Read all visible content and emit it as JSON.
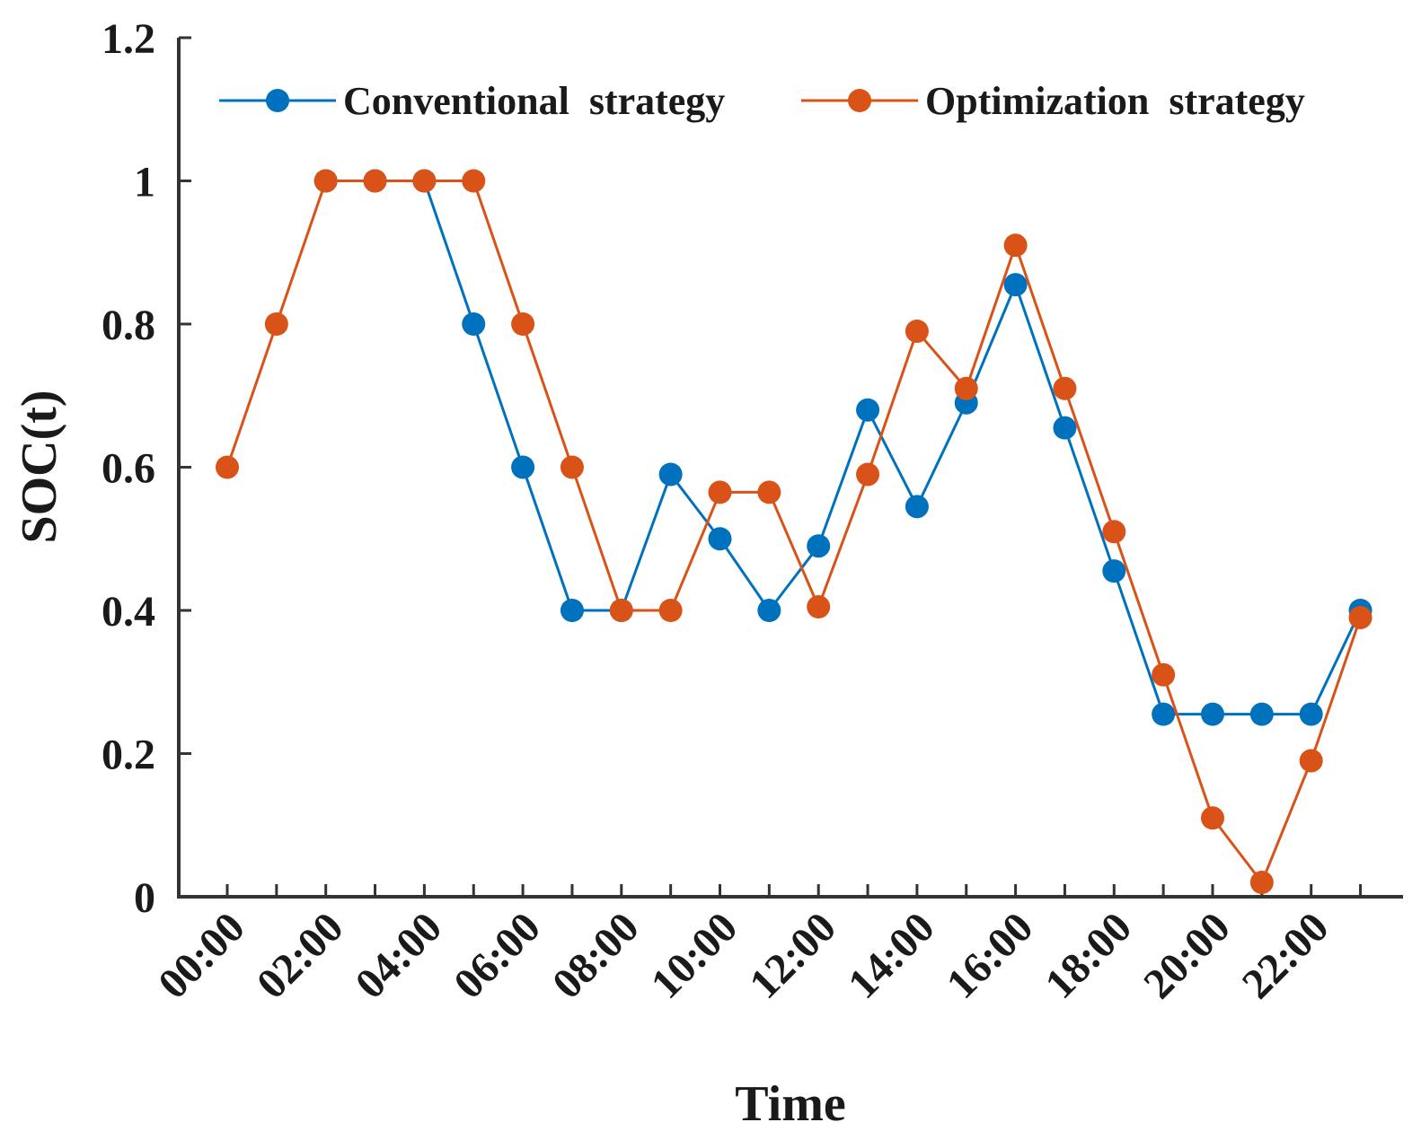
{
  "chart_data": {
    "type": "line",
    "title": "",
    "xlabel": "Time",
    "ylabel": "SOC(t)",
    "ylim": [
      0,
      1.2
    ],
    "yticks": [
      "0",
      "0.2",
      "0.4",
      "0.6",
      "0.8",
      "1",
      "1.2"
    ],
    "ytick_values": [
      0,
      0.2,
      0.4,
      0.6,
      0.8,
      1.0,
      1.2
    ],
    "xticks": [
      "00:00",
      "02:00",
      "04:00",
      "06:00",
      "08:00",
      "10:00",
      "12:00",
      "14:00",
      "16:00",
      "18:00",
      "20:00",
      "22:00"
    ],
    "xtick_hours": [
      0,
      2,
      4,
      6,
      8,
      10,
      12,
      14,
      16,
      18,
      20,
      22
    ],
    "x": [
      0,
      1,
      2,
      3,
      4,
      5,
      6,
      7,
      8,
      9,
      10,
      11,
      12,
      13,
      14,
      15,
      16,
      17,
      18,
      19,
      20,
      21,
      22,
      23
    ],
    "grid": false,
    "legend_position": "top",
    "series": [
      {
        "name": "Conventional  strategy",
        "color": "#0072BD",
        "x": [
          2,
          3,
          4,
          5,
          6,
          7,
          8,
          9,
          10,
          11,
          12,
          13,
          14,
          15,
          16,
          17,
          18,
          19,
          20,
          21,
          22,
          23
        ],
        "values": [
          1.0,
          1.0,
          1.0,
          0.8,
          0.6,
          0.4,
          0.4,
          0.59,
          0.5,
          0.4,
          0.49,
          0.68,
          0.545,
          0.69,
          0.855,
          0.655,
          0.455,
          0.255,
          0.255,
          0.255,
          0.255,
          0.4
        ]
      },
      {
        "name": "Optimization  strategy",
        "color": "#D95319",
        "x": [
          0,
          1,
          2,
          3,
          4,
          5,
          6,
          7,
          8,
          9,
          10,
          11,
          12,
          13,
          14,
          15,
          16,
          17,
          18,
          19,
          20,
          21,
          22,
          23
        ],
        "values": [
          0.6,
          0.8,
          1.0,
          1.0,
          1.0,
          1.0,
          0.8,
          0.6,
          0.4,
          0.4,
          0.565,
          0.565,
          0.405,
          0.59,
          0.79,
          0.71,
          0.91,
          0.71,
          0.51,
          0.31,
          0.11,
          0.02,
          0.19,
          0.39
        ]
      }
    ]
  }
}
